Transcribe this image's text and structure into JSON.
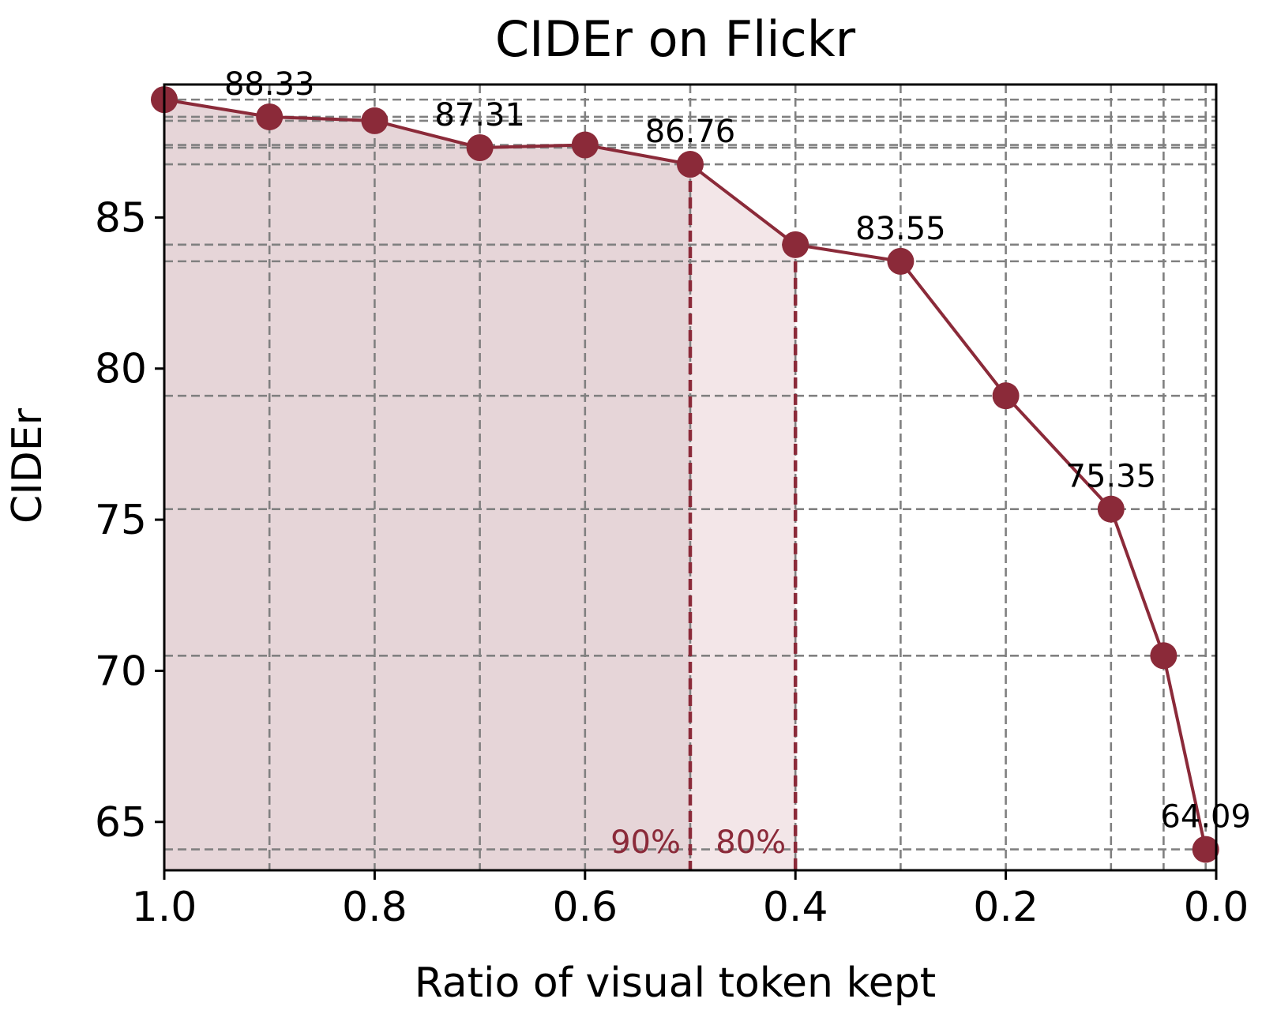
{
  "chart_data": {
    "type": "line",
    "title": "CIDEr on Flickr",
    "xlabel": "Ratio of visual token kept",
    "ylabel": "CIDEr",
    "x_reversed": true,
    "xlim": [
      1.0,
      0.0
    ],
    "ylim": [
      63.4,
      89.4
    ],
    "x_ticks": [
      1.0,
      0.8,
      0.6,
      0.4,
      0.2,
      0.0
    ],
    "x_tick_labels": [
      "1.0",
      "0.8",
      "0.6",
      "0.4",
      "0.2",
      "0.0"
    ],
    "y_ticks": [
      65,
      70,
      75,
      80,
      85
    ],
    "y_tick_labels": [
      "65",
      "70",
      "75",
      "80",
      "85"
    ],
    "grid": true,
    "series": [
      {
        "color": "#8b2a39",
        "x": [
          1.0,
          0.9,
          0.8,
          0.7,
          0.6,
          0.5,
          0.4,
          0.3,
          0.2,
          0.1,
          0.05,
          0.01
        ],
        "y": [
          88.9,
          88.33,
          88.2,
          87.31,
          87.4,
          86.76,
          84.1,
          83.55,
          79.1,
          75.35,
          70.5,
          64.09
        ]
      }
    ],
    "data_labels": [
      {
        "x": 0.9,
        "y": 88.33,
        "text": "88.33"
      },
      {
        "x": 0.7,
        "y": 87.31,
        "text": "87.31"
      },
      {
        "x": 0.5,
        "y": 86.76,
        "text": "86.76"
      },
      {
        "x": 0.3,
        "y": 83.55,
        "text": "83.55"
      },
      {
        "x": 0.1,
        "y": 75.35,
        "text": "75.35"
      },
      {
        "x": 0.01,
        "y": 64.09,
        "text": "64.09"
      }
    ],
    "thresholds": [
      {
        "x": 0.5,
        "label": "90%",
        "fill": "#e6d5d8"
      },
      {
        "x": 0.4,
        "label": "80%",
        "fill": "#f3e6e8"
      }
    ],
    "colors": {
      "line": "#8b2a39",
      "marker": "#8b2a39",
      "grid": "#808080",
      "threshold_text": "#8b2a39"
    }
  }
}
